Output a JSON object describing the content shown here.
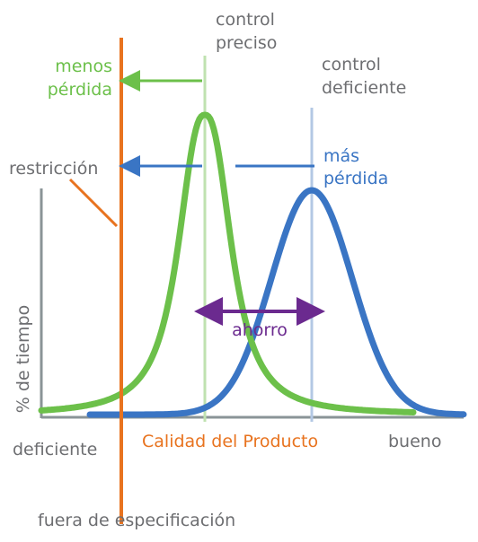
{
  "labels": {
    "control_preciso": [
      "control",
      "preciso"
    ],
    "menos_perdida": [
      "menos",
      "pérdida"
    ],
    "control_deficiente": [
      "control",
      "deficiente"
    ],
    "restriccion": "restricción",
    "mas_perdida": [
      "más",
      "pérdida"
    ],
    "ahorro": "ahorro",
    "y_axis": "% de tiempo",
    "deficiente": "deficiente",
    "x_axis": "Calidad del Producto",
    "bueno": "bueno",
    "fuera": "fuera de especificación"
  }
}
